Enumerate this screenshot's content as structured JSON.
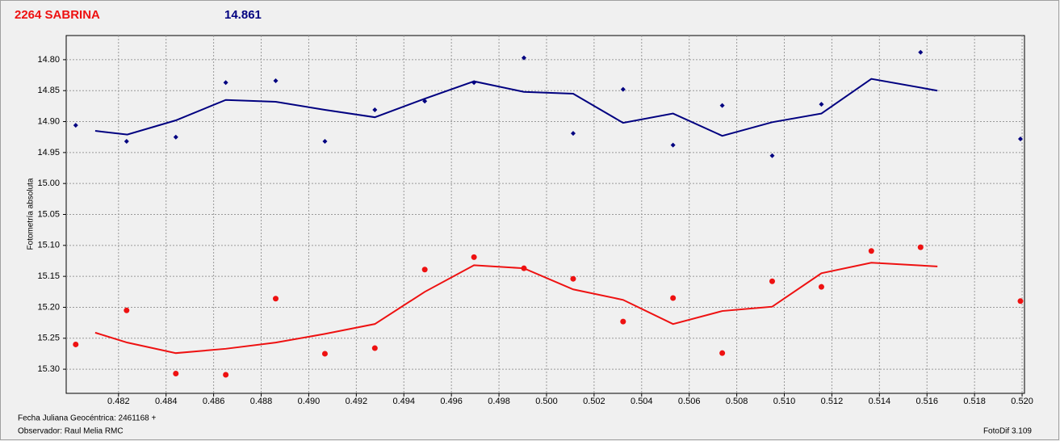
{
  "chart_data": {
    "type": "scatter",
    "title": "2264 SABRINA",
    "subtitle": "14.861",
    "ylabel": "Fotometría absoluta",
    "xlabel": "Fecha Juliana Geocéntrica: 2461168 +",
    "observer": "Observador: Raul Melia RMC",
    "software": "FotoDif 3.109",
    "xlim": [
      0.4798,
      0.5201
    ],
    "ylim": [
      15.339,
      14.761
    ],
    "xticks": [
      0.482,
      0.484,
      0.486,
      0.488,
      {
        "value": 0.49,
        "label": "0.490"
      },
      0.492,
      0.494,
      0.496,
      0.498,
      {
        "value": 0.5,
        "label": "0.500"
      },
      0.502,
      0.504,
      0.506,
      0.508,
      {
        "value": 0.51,
        "label": "0.510"
      },
      0.512,
      0.514,
      0.516,
      0.518,
      {
        "value": 0.52,
        "label": "0.520"
      }
    ],
    "yticks": [
      {
        "value": 14.8,
        "label": "14.80"
      },
      14.85,
      {
        "value": 14.9,
        "label": "14.90"
      },
      14.95,
      {
        "value": 15,
        "label": "15.00"
      },
      15.05,
      {
        "value": 15.1,
        "label": "15.10"
      },
      15.15,
      {
        "value": 15.2,
        "label": "15.20"
      },
      15.25,
      {
        "value": 15.3,
        "label": "15.30"
      }
    ],
    "grid": true,
    "series": [
      {
        "color": "#000080",
        "marker": "diamond",
        "x": [
          0.4802,
          0.48234,
          0.48441,
          0.48651,
          0.48861,
          0.49068,
          0.49278,
          0.49488,
          0.49695,
          0.49905,
          0.50112,
          0.50322,
          0.50532,
          0.50739,
          0.50949,
          0.51156,
          0.51573,
          0.51993
        ],
        "values": [
          14.906,
          14.932,
          14.925,
          14.837,
          14.834,
          14.932,
          14.881,
          14.867,
          14.837,
          14.797,
          14.919,
          14.848,
          14.938,
          14.874,
          14.955,
          14.872,
          14.788,
          14.928
        ]
      },
      {
        "color": "#000080",
        "marker": "line",
        "x": [
          0.48102,
          0.48237,
          0.48441,
          0.48651,
          0.48861,
          0.49068,
          0.49278,
          0.49488,
          0.49695,
          0.49905,
          0.50112,
          0.50322,
          0.50532,
          0.50739,
          0.50949,
          0.51156,
          0.51366,
          0.51644
        ],
        "values": [
          14.915,
          14.921,
          14.898,
          14.865,
          14.868,
          14.881,
          14.893,
          14.863,
          14.835,
          14.852,
          14.855,
          14.902,
          14.887,
          14.923,
          14.901,
          14.887,
          14.831,
          14.85
        ]
      },
      {
        "color": "#ee1111",
        "marker": "circle",
        "x": [
          0.4802,
          0.48234,
          0.48441,
          0.48651,
          0.48861,
          0.49068,
          0.49278,
          0.49488,
          0.49695,
          0.49905,
          0.50112,
          0.50322,
          0.50532,
          0.50739,
          0.50949,
          0.51156,
          0.51366,
          0.51573,
          0.51993
        ],
        "values": [
          15.26,
          15.205,
          15.307,
          15.309,
          15.186,
          15.275,
          15.266,
          15.139,
          15.119,
          15.137,
          15.154,
          15.223,
          15.185,
          15.274,
          15.158,
          15.167,
          15.109,
          15.103,
          15.19
        ]
      },
      {
        "color": "#ee1111",
        "marker": "line",
        "x": [
          0.48102,
          0.48237,
          0.48441,
          0.48651,
          0.48861,
          0.49068,
          0.49278,
          0.49488,
          0.49695,
          0.49905,
          0.50112,
          0.50322,
          0.50532,
          0.50739,
          0.50949,
          0.51156,
          0.51366,
          0.51644
        ],
        "values": [
          15.241,
          15.257,
          15.274,
          15.267,
          15.257,
          15.243,
          15.227,
          15.175,
          15.132,
          15.137,
          15.171,
          15.188,
          15.227,
          15.206,
          15.199,
          15.145,
          15.128,
          15.134
        ]
      }
    ]
  }
}
